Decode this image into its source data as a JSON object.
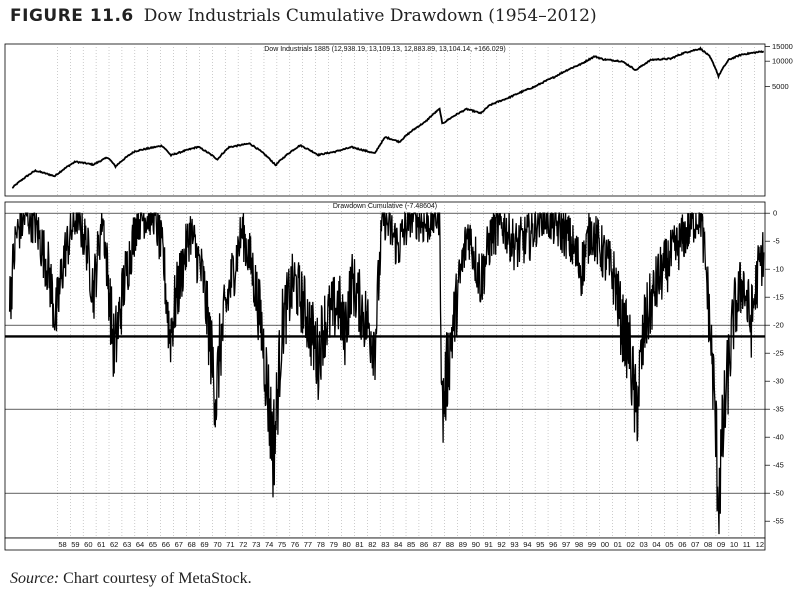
{
  "figure": {
    "label": "FIGURE 11.6",
    "title": "Dow Industrials Cumulative Drawdown (1954–2012)"
  },
  "source": {
    "prefix": "Source:",
    "text": " Chart courtesy of MetaStock."
  },
  "chart_data": [
    {
      "type": "line",
      "title": "Dow Industrials 1885 (12,938.19, 13,109.13, 12,883.89, 13,104.14, +166.029)",
      "yscale": "log",
      "ylim": [
        250,
        16000
      ],
      "yticks": [
        15000,
        10000,
        5000
      ],
      "grid": true,
      "x": [
        1954.5,
        1956.3,
        1957.8,
        1959.4,
        1960.8,
        1961.9,
        1962.5,
        1964,
        1966.1,
        1966.8,
        1968.9,
        1970.4,
        1971.3,
        1972.9,
        1974.9,
        1976.8,
        1978.2,
        1979.5,
        1980.8,
        1982.6,
        1983.4,
        1984.5,
        1985.5,
        1986.5,
        1987.6,
        1987.8,
        1989.7,
        1990.8,
        1991.5,
        1993,
        1995,
        1996.5,
        1997.6,
        1998.6,
        1999.6,
        2000.3,
        2001.7,
        2002.8,
        2004,
        2005.5,
        2006.5,
        2007.8,
        2008.5,
        2009.2,
        2010,
        2011,
        2012.7
      ],
      "values": [
        310,
        500,
        430,
        640,
        590,
        720,
        560,
        850,
        990,
        760,
        960,
        680,
        950,
        1050,
        580,
        1000,
        770,
        840,
        950,
        800,
        1250,
        1100,
        1500,
        1900,
        2700,
        1800,
        2700,
        2400,
        3000,
        3700,
        5000,
        6500,
        8000,
        9300,
        11400,
        10500,
        10000,
        7800,
        10400,
        10700,
        12500,
        14100,
        11400,
        6600,
        10400,
        12000,
        13100
      ]
    },
    {
      "type": "line",
      "title": "Drawdown Cumulative (-7.48604)",
      "ylim": [
        -58,
        2
      ],
      "yticks": [
        0,
        -5,
        -10,
        -15,
        -20,
        -25,
        -30,
        -35,
        -40,
        -45,
        -50,
        -55
      ],
      "reference_lines": [
        0,
        -20,
        -22,
        -35,
        -50
      ],
      "grid": true,
      "x": [
        1954.3,
        1954.8,
        1955.6,
        1956.3,
        1957.3,
        1957.9,
        1958.5,
        1959.5,
        1960.3,
        1960.8,
        1961.5,
        1962.4,
        1963.2,
        1964.2,
        1965.5,
        1966.2,
        1966.7,
        1967.3,
        1968.3,
        1969.3,
        1970.3,
        1970.6,
        1971.2,
        1972.3,
        1973.1,
        1973.8,
        1974.7,
        1974.9,
        1975.4,
        1976.3,
        1977.3,
        1978.2,
        1978.6,
        1979.8,
        1980.2,
        1980.8,
        1981.7,
        1982.6,
        1983.2,
        1984.4,
        1985.4,
        1986.5,
        1987.6,
        1987.8,
        1988.4,
        1989.3,
        1989.8,
        1990.8,
        1991.6,
        1992.5,
        1993.5,
        1994.6,
        1995.5,
        1996.5,
        1997.5,
        1998.6,
        1999.3,
        2000.2,
        2001.2,
        2001.7,
        2002.3,
        2002.8,
        2003.5,
        2004.5,
        2005.5,
        2006.3,
        2007.1,
        2007.8,
        2008.3,
        2008.8,
        2009.2,
        2009.8,
        2010.4,
        2011.1,
        2011.7,
        2012.3,
        2012.7
      ],
      "values": [
        -16,
        -4,
        0,
        -2,
        -10,
        -19,
        -8,
        0,
        -6,
        -14,
        0,
        -25,
        -12,
        -1,
        0,
        -8,
        -22,
        -14,
        -3,
        -12,
        -33,
        -24,
        -15,
        -3,
        -10,
        -20,
        -42,
        -38,
        -20,
        -12,
        -18,
        -26,
        -20,
        -16,
        -22,
        -12,
        -18,
        -23,
        0,
        -6,
        0,
        -2,
        0,
        -36,
        -24,
        -10,
        -3,
        -12,
        -4,
        -2,
        -6,
        -4,
        0,
        -2,
        -4,
        -10,
        -3,
        -7,
        -12,
        -20,
        -24,
        -36,
        -20,
        -12,
        -8,
        -5,
        -2,
        0,
        -12,
        -30,
        -50,
        -32,
        -18,
        -12,
        -20,
        -10,
        -7
      ]
    }
  ],
  "x_ticks": [
    "58",
    "59",
    "60",
    "61",
    "62",
    "63",
    "64",
    "65",
    "66",
    "67",
    "68",
    "69",
    "70",
    "71",
    "72",
    "73",
    "74",
    "75",
    "76",
    "77",
    "78",
    "79",
    "80",
    "81",
    "82",
    "83",
    "84",
    "85",
    "86",
    "87",
    "88",
    "89",
    "90",
    "91",
    "92",
    "93",
    "94",
    "95",
    "96",
    "97",
    "98",
    "99",
    "00",
    "01",
    "02",
    "03",
    "04",
    "05",
    "06",
    "07",
    "08",
    "09",
    "10",
    "11",
    "12"
  ]
}
